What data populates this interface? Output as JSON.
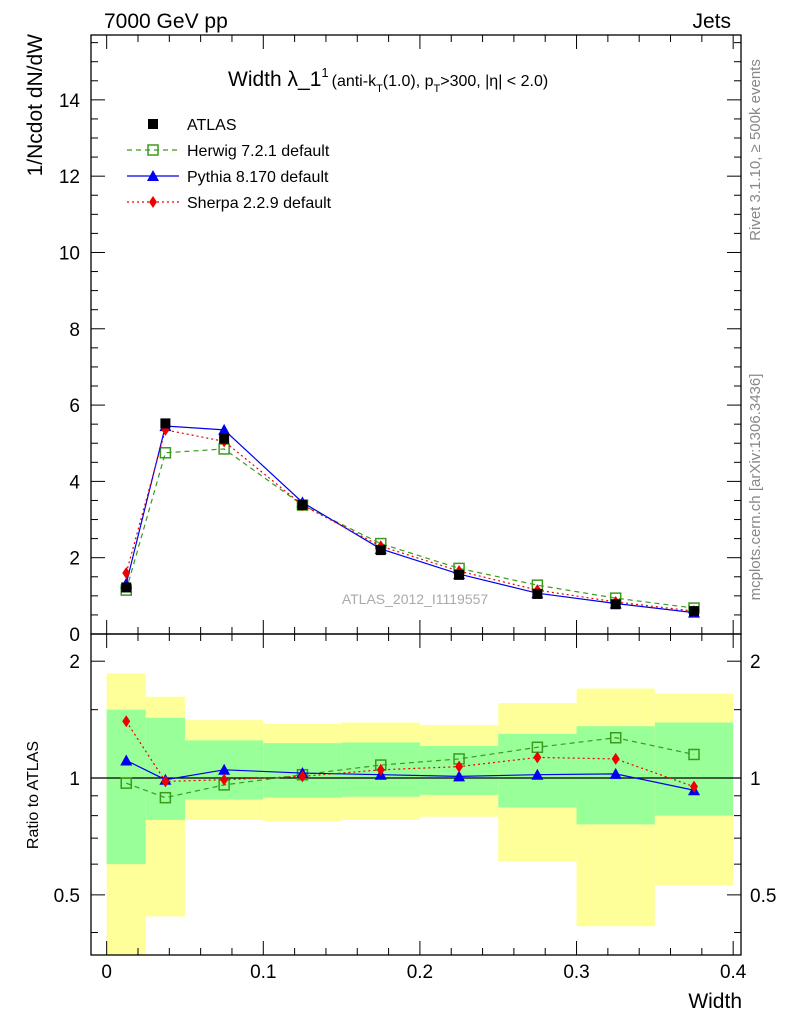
{
  "header": {
    "left": "7000 GeV pp",
    "right": "Jets"
  },
  "side_labels": {
    "rivet": "Rivet 3.1.10, ≥ 500k events",
    "mcplots": "mcplots.cern.ch [arXiv:1306.3436]"
  },
  "title": {
    "main": "Width λ_1",
    "main_sup": "1",
    "paren_open": "(anti-k",
    "sub_t1": "T",
    "mid": "(1.0), p",
    "sub_t2": "T",
    "tail": ">300, |η| < 2.0)"
  },
  "watermark": "ATLAS_2012_I1119557",
  "colors": {
    "data": "#000000",
    "herwig": "#3a9a1e",
    "pythia": "#0000ee",
    "sherpa": "#ee0000",
    "band_inner": "#99ff99",
    "band_outer": "#ffff99"
  },
  "chart_data": [
    {
      "type": "line",
      "panel": "main",
      "xlabel": "",
      "ylabel": "1/Ncdot dN/dW",
      "xlim": [
        -0.01,
        0.405
      ],
      "ylim": [
        0,
        15.7
      ],
      "yticks": [
        0,
        2,
        4,
        6,
        8,
        10,
        12,
        14
      ],
      "bin_edges": [
        0.0,
        0.025,
        0.05,
        0.1,
        0.15,
        0.2,
        0.25,
        0.3,
        0.35,
        0.4
      ],
      "x": [
        0.0125,
        0.0375,
        0.075,
        0.125,
        0.175,
        0.225,
        0.275,
        0.325,
        0.375
      ],
      "legend_position": "top-left",
      "series": [
        {
          "key": "data",
          "name": "ATLAS",
          "values": [
            1.22,
            5.52,
            5.12,
            3.38,
            2.2,
            1.55,
            1.05,
            0.78,
            0.6
          ]
        },
        {
          "key": "herwig",
          "name": "Herwig 7.2.1 default",
          "values": [
            1.15,
            4.75,
            4.85,
            3.38,
            2.37,
            1.72,
            1.28,
            0.94,
            0.68
          ]
        },
        {
          "key": "pythia",
          "name": "Pythia 8.170 default",
          "values": [
            1.32,
            5.45,
            5.35,
            3.45,
            2.23,
            1.57,
            1.07,
            0.8,
            0.56
          ]
        },
        {
          "key": "sherpa",
          "name": "Sherpa 2.2.9 default",
          "values": [
            1.6,
            5.35,
            5.05,
            3.38,
            2.3,
            1.65,
            1.15,
            0.84,
            0.6
          ]
        }
      ]
    },
    {
      "type": "line",
      "panel": "ratio",
      "xlabel": "Width",
      "ylabel": "Ratio to ATLAS",
      "xlim": [
        -0.01,
        0.405
      ],
      "ylim": [
        0.35,
        2.35
      ],
      "yticks": [
        0.5,
        1,
        2
      ],
      "xticks": [
        0,
        0.1,
        0.2,
        0.3,
        0.4
      ],
      "x": [
        0.0125,
        0.0375,
        0.075,
        0.125,
        0.175,
        0.225,
        0.275,
        0.325,
        0.375
      ],
      "bands": {
        "bin_edges": [
          0.0,
          0.025,
          0.05,
          0.1,
          0.15,
          0.2,
          0.25,
          0.3,
          0.35,
          0.4
        ],
        "inner_low": [
          0.6,
          0.78,
          0.88,
          0.89,
          0.895,
          0.905,
          0.84,
          0.76,
          0.8
        ],
        "inner_high": [
          1.5,
          1.43,
          1.25,
          1.23,
          1.235,
          1.21,
          1.3,
          1.36,
          1.39
        ],
        "outer_low": [
          0.35,
          0.44,
          0.78,
          0.775,
          0.78,
          0.795,
          0.61,
          0.415,
          0.53
        ],
        "outer_high": [
          1.86,
          1.62,
          1.41,
          1.38,
          1.39,
          1.37,
          1.56,
          1.7,
          1.65
        ]
      },
      "series": [
        {
          "key": "herwig",
          "name": "Herwig 7.2.1 default",
          "values": [
            0.97,
            0.89,
            0.96,
            1.02,
            1.08,
            1.12,
            1.2,
            1.27,
            1.15
          ]
        },
        {
          "key": "pythia",
          "name": "Pythia 8.170 default",
          "values": [
            1.11,
            0.99,
            1.05,
            1.03,
            1.02,
            1.01,
            1.02,
            1.025,
            0.93
          ]
        },
        {
          "key": "sherpa",
          "name": "Sherpa 2.2.9 default",
          "values": [
            1.4,
            0.98,
            0.99,
            1.01,
            1.05,
            1.07,
            1.13,
            1.12,
            0.95
          ]
        }
      ]
    }
  ]
}
